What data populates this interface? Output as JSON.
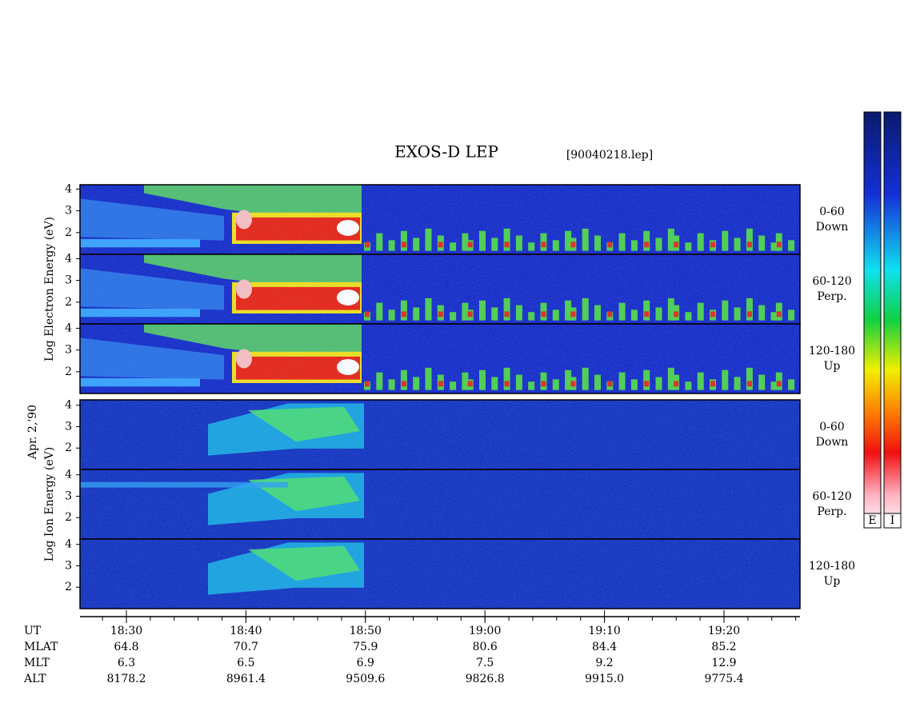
{
  "title": "EXOS-D LEP",
  "file": "[90040218.lep]",
  "date_label": "Apr. 2,'90",
  "groups": [
    {
      "axis_label": "Log Electron Energy (eV)",
      "ylim": [
        1,
        4.2
      ],
      "panels": [
        {
          "yticks": [
            2,
            3,
            4
          ],
          "side": [
            "0-60",
            "Down"
          ]
        },
        {
          "yticks": [
            2,
            3,
            4
          ],
          "side": [
            "60-120",
            "Perp."
          ]
        },
        {
          "yticks": [
            2,
            3,
            4
          ],
          "side": [
            "120-180",
            "Up"
          ]
        }
      ]
    },
    {
      "axis_label": "Log Ion Energy (eV)",
      "ylim": [
        1,
        4.25
      ],
      "panels": [
        {
          "yticks": [
            2,
            3,
            4
          ],
          "side": [
            "0-60",
            "Down"
          ]
        },
        {
          "yticks": [
            2,
            3,
            4
          ],
          "side": [
            "60-120",
            "Perp."
          ]
        },
        {
          "yticks": [
            2,
            3,
            4
          ],
          "side": [
            "120-180",
            "Up"
          ]
        }
      ]
    }
  ],
  "rows": [
    {
      "name": "UT",
      "values": [
        "18:30",
        "18:40",
        "18:50",
        "19:00",
        "19:10",
        "19:20"
      ]
    },
    {
      "name": "MLAT",
      "values": [
        "64.8",
        "70.7",
        "75.9",
        "80.6",
        "84.4",
        "85.2"
      ]
    },
    {
      "name": "MLT",
      "values": [
        "6.3",
        "6.5",
        "6.9",
        "7.5",
        "9.2",
        "12.9"
      ]
    },
    {
      "name": "ALT",
      "values": [
        "8178.2",
        "8961.4",
        "9509.6",
        "9826.8",
        "9915.0",
        "9775.4"
      ]
    }
  ],
  "colorbars": [
    "E",
    "I"
  ]
}
